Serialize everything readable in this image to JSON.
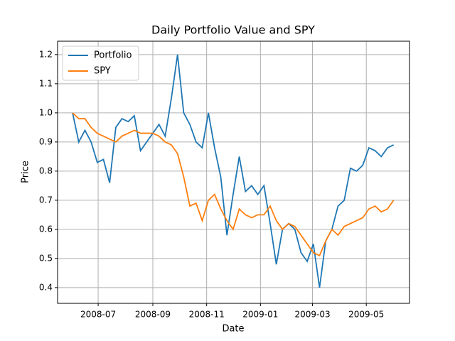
{
  "chart_data": {
    "type": "line",
    "title": "Daily Portfolio Value and SPY",
    "xlabel": "Date",
    "ylabel": "Price",
    "x": [
      14032,
      14039,
      14046,
      14053,
      14060,
      14067,
      14074,
      14081,
      14088,
      14095,
      14102,
      14109,
      14116,
      14123,
      14130,
      14137,
      14144,
      14151,
      14158,
      14165,
      14172,
      14179,
      14186,
      14193,
      14200,
      14207,
      14214,
      14221,
      14228,
      14235,
      14242,
      14249,
      14256,
      14263,
      14270,
      14277,
      14284,
      14291,
      14298,
      14305,
      14312,
      14319,
      14326,
      14333,
      14340,
      14347,
      14354,
      14361,
      14368,
      14375,
      14382,
      14389,
      14396
    ],
    "series": [
      {
        "name": "Portfolio",
        "color": "#1f77b4",
        "values": [
          1.0,
          0.9,
          0.94,
          0.9,
          0.83,
          0.84,
          0.76,
          0.95,
          0.98,
          0.97,
          0.99,
          0.87,
          0.9,
          0.93,
          0.96,
          0.92,
          1.05,
          1.2,
          1.0,
          0.96,
          0.9,
          0.88,
          1.0,
          0.88,
          0.78,
          0.58,
          0.72,
          0.85,
          0.73,
          0.75,
          0.72,
          0.75,
          0.62,
          0.48,
          0.6,
          0.62,
          0.6,
          0.52,
          0.49,
          0.55,
          0.4,
          0.56,
          0.6,
          0.68,
          0.7,
          0.81,
          0.8,
          0.82,
          0.88,
          0.87,
          0.85,
          0.88,
          0.89
        ]
      },
      {
        "name": "SPY",
        "color": "#ff7f0e",
        "values": [
          1.0,
          0.98,
          0.98,
          0.95,
          0.93,
          0.92,
          0.91,
          0.9,
          0.92,
          0.93,
          0.94,
          0.93,
          0.93,
          0.93,
          0.92,
          0.9,
          0.89,
          0.86,
          0.78,
          0.68,
          0.69,
          0.63,
          0.7,
          0.72,
          0.67,
          0.63,
          0.6,
          0.67,
          0.65,
          0.64,
          0.65,
          0.65,
          0.68,
          0.63,
          0.6,
          0.62,
          0.61,
          0.58,
          0.55,
          0.52,
          0.51,
          0.56,
          0.6,
          0.58,
          0.61,
          0.62,
          0.63,
          0.64,
          0.67,
          0.68,
          0.66,
          0.67,
          0.7
        ]
      }
    ],
    "xlim": [
      14015,
      14414
    ],
    "xticks": [
      {
        "value": 14061,
        "label": "2008-07"
      },
      {
        "value": 14123,
        "label": "2008-09"
      },
      {
        "value": 14184,
        "label": "2008-11"
      },
      {
        "value": 14245,
        "label": "2009-01"
      },
      {
        "value": 14304,
        "label": "2009-03"
      },
      {
        "value": 14365,
        "label": "2009-05"
      }
    ],
    "ylim": [
      0.346,
      1.246
    ],
    "yticks": [
      0.4,
      0.5,
      0.6,
      0.7,
      0.8,
      0.9,
      {
        "value": 1,
        "label": "1.0"
      },
      1.1,
      1.2
    ],
    "grid": true,
    "legend": "upper-left"
  }
}
